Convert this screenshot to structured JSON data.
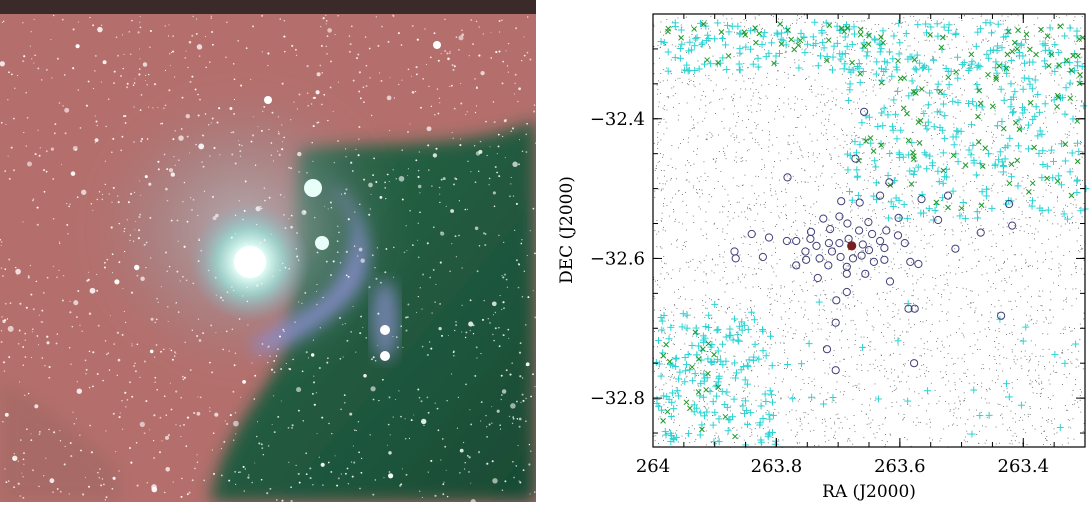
{
  "image_panel": {
    "description_hidden": "",
    "colors": {
      "pink_nebula": "#b8706c",
      "green_nebula": "#1f5a3e",
      "blue_nebula": "#8a8fd0",
      "bright_core": "#d8fff4"
    }
  },
  "chart_data": {
    "type": "scatter",
    "title": "",
    "xlabel": "RA (J2000)",
    "ylabel": "DEC (J2000)",
    "xlim": [
      264.0,
      263.3
    ],
    "ylim": [
      -32.87,
      -32.25
    ],
    "x_ticks": [
      264.0,
      263.8,
      263.6,
      263.4
    ],
    "x_tick_labels": [
      "264",
      "263.8",
      "263.6",
      "263.4"
    ],
    "y_ticks": [
      -32.4,
      -32.6,
      -32.8
    ],
    "y_tick_labels": [
      "−32.4",
      "−32.6",
      "−32.8"
    ],
    "grid": false,
    "legend": "none",
    "series": [
      {
        "marker": "open-circle",
        "color": "#40407a",
        "points": [
          [
            263.658,
            -32.39
          ],
          [
            263.672,
            -32.457
          ],
          [
            263.782,
            -32.484
          ],
          [
            263.617,
            -32.491
          ],
          [
            263.522,
            -32.51
          ],
          [
            263.565,
            -32.515
          ],
          [
            263.665,
            -32.52
          ],
          [
            263.695,
            -32.518
          ],
          [
            263.632,
            -32.51
          ],
          [
            263.423,
            -32.522
          ],
          [
            263.698,
            -32.54
          ],
          [
            263.724,
            -32.543
          ],
          [
            263.602,
            -32.542
          ],
          [
            263.651,
            -32.548
          ],
          [
            263.538,
            -32.545
          ],
          [
            263.685,
            -32.55
          ],
          [
            263.713,
            -32.558
          ],
          [
            263.622,
            -32.56
          ],
          [
            263.666,
            -32.56
          ],
          [
            263.469,
            -32.563
          ],
          [
            263.418,
            -32.553
          ],
          [
            263.744,
            -32.562
          ],
          [
            263.745,
            -32.572
          ],
          [
            263.753,
            -32.59
          ],
          [
            263.645,
            -32.565
          ],
          [
            263.632,
            -32.575
          ],
          [
            263.603,
            -32.567
          ],
          [
            263.84,
            -32.565
          ],
          [
            263.812,
            -32.57
          ],
          [
            263.783,
            -32.575
          ],
          [
            263.768,
            -32.575
          ],
          [
            263.735,
            -32.582
          ],
          [
            263.715,
            -32.578
          ],
          [
            263.698,
            -32.578
          ],
          [
            263.683,
            -32.572
          ],
          [
            263.66,
            -32.58
          ],
          [
            263.65,
            -32.588
          ],
          [
            263.625,
            -32.585
          ],
          [
            263.592,
            -32.578
          ],
          [
            263.71,
            -32.59
          ],
          [
            263.73,
            -32.6
          ],
          [
            263.752,
            -32.602
          ],
          [
            263.768,
            -32.61
          ],
          [
            263.716,
            -32.61
          ],
          [
            263.696,
            -32.598
          ],
          [
            263.676,
            -32.6
          ],
          [
            263.662,
            -32.596
          ],
          [
            263.642,
            -32.605
          ],
          [
            263.625,
            -32.602
          ],
          [
            263.583,
            -32.605
          ],
          [
            263.57,
            -32.608
          ],
          [
            263.868,
            -32.59
          ],
          [
            263.866,
            -32.6
          ],
          [
            263.822,
            -32.598
          ],
          [
            263.686,
            -32.612
          ],
          [
            263.686,
            -32.622
          ],
          [
            263.656,
            -32.622
          ],
          [
            263.616,
            -32.633
          ],
          [
            263.733,
            -32.628
          ],
          [
            263.686,
            -32.648
          ],
          [
            263.703,
            -32.66
          ],
          [
            263.586,
            -32.672
          ],
          [
            263.576,
            -32.672
          ],
          [
            263.436,
            -32.682
          ],
          [
            263.704,
            -32.692
          ],
          [
            263.718,
            -32.73
          ],
          [
            263.577,
            -32.75
          ],
          [
            263.704,
            -32.76
          ],
          [
            263.51,
            -32.586
          ]
        ]
      },
      {
        "marker": "filled-circle",
        "color": "#7a1f1f",
        "points": [
          [
            263.678,
            -32.582
          ]
        ]
      },
      {
        "marker": "plus",
        "color": "#2ad4d4",
        "points": []
      },
      {
        "marker": "cross",
        "color": "#1f9a2a",
        "points": []
      },
      {
        "marker": "dot",
        "color": "#555555",
        "points": []
      }
    ]
  }
}
